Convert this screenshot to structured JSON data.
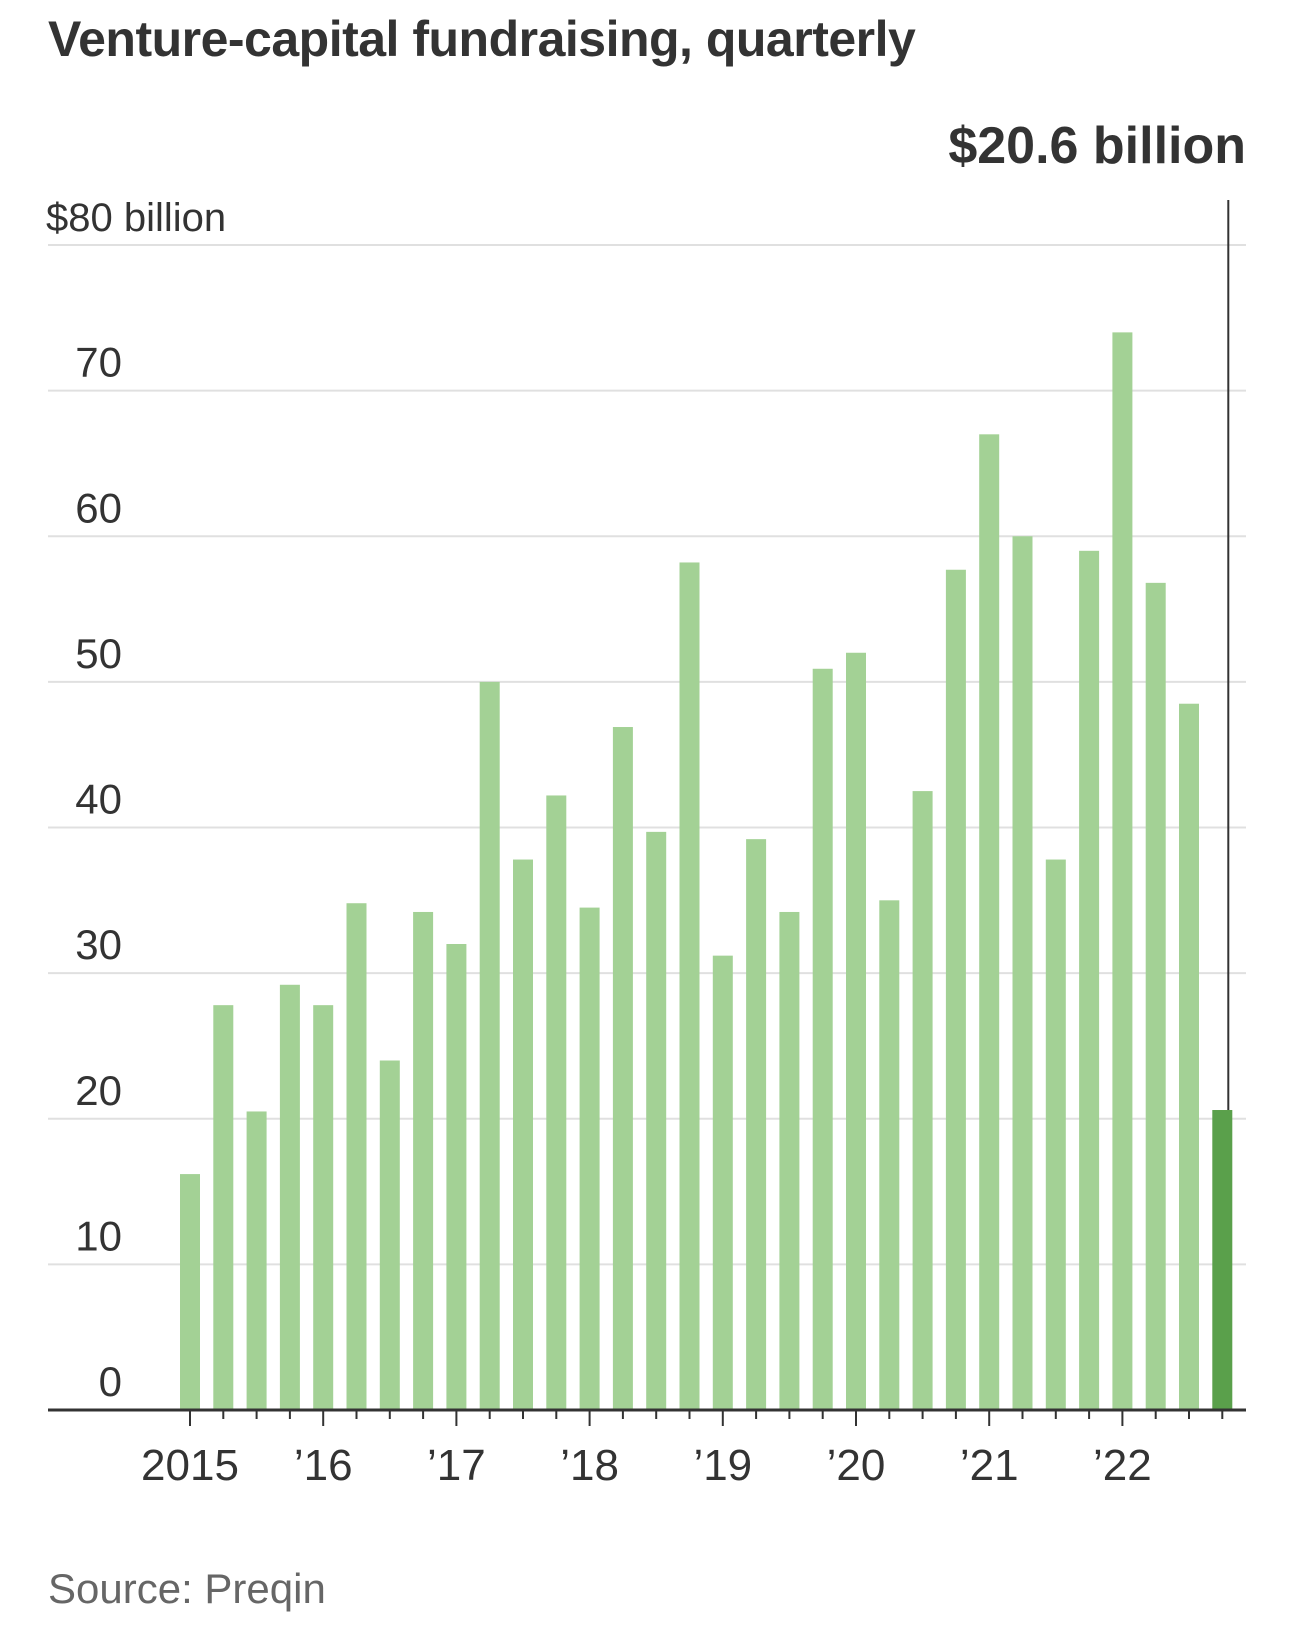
{
  "title": "Venture-capital fundraising, quarterly",
  "source": "Source: Preqin",
  "chart_data": {
    "type": "bar",
    "title": "Venture-capital fundraising, quarterly",
    "xlabel": "",
    "ylabel": "",
    "ylim": [
      0,
      80
    ],
    "y_ticks": [
      {
        "value": 0,
        "label": "0"
      },
      {
        "value": 10,
        "label": "10"
      },
      {
        "value": 20,
        "label": "20"
      },
      {
        "value": 30,
        "label": "30"
      },
      {
        "value": 40,
        "label": "40"
      },
      {
        "value": 50,
        "label": "50"
      },
      {
        "value": 60,
        "label": "60"
      },
      {
        "value": 70,
        "label": "70"
      },
      {
        "value": 80,
        "label": "$80 billion"
      }
    ],
    "x_ticks": [
      "2015",
      "’16",
      "’17",
      "’18",
      "’19",
      "’20",
      "’21",
      "’22"
    ],
    "grid": true,
    "categories": [
      "2015 Q1",
      "2015 Q2",
      "2015 Q3",
      "2015 Q4",
      "2016 Q1",
      "2016 Q2",
      "2016 Q3",
      "2016 Q4",
      "2017 Q1",
      "2017 Q2",
      "2017 Q3",
      "2017 Q4",
      "2018 Q1",
      "2018 Q2",
      "2018 Q3",
      "2018 Q4",
      "2019 Q1",
      "2019 Q2",
      "2019 Q3",
      "2019 Q4",
      "2020 Q1",
      "2020 Q2",
      "2020 Q3",
      "2020 Q4",
      "2021 Q1",
      "2021 Q2",
      "2021 Q3",
      "2021 Q4",
      "2022 Q1",
      "2022 Q2",
      "2022 Q3",
      "2022 Q4"
    ],
    "values": [
      16.2,
      27.8,
      20.5,
      29.2,
      27.8,
      34.8,
      24.0,
      34.2,
      32.0,
      50.0,
      37.8,
      42.2,
      34.5,
      46.9,
      39.7,
      58.2,
      31.2,
      39.2,
      34.2,
      50.9,
      52.0,
      35.0,
      42.5,
      57.7,
      67.0,
      60.0,
      37.8,
      59.0,
      74.0,
      56.8,
      48.5,
      20.6
    ],
    "colors": {
      "bar": "#a3d195",
      "highlight": "#5aa04b"
    },
    "highlight_index": 31,
    "annotation": "$20.6 billion"
  }
}
